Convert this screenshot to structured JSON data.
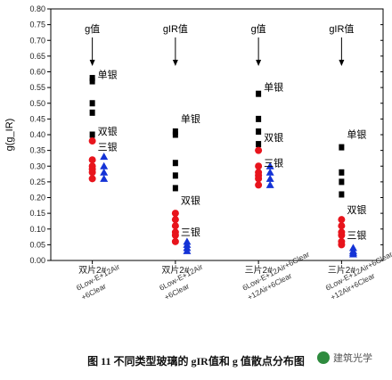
{
  "chart_data": {
    "type": "scatter",
    "ylabel": "g(g_IR)",
    "ylim": [
      0,
      0.8
    ],
    "ytick_labels": [
      "0.00",
      "0.05",
      "0.10",
      "0.15",
      "0.20",
      "0.25",
      "0.30",
      "0.35",
      "0.40",
      "0.45",
      "0.50",
      "0.55",
      "0.60",
      "0.65",
      "0.70",
      "0.75",
      "0.80"
    ],
    "categories": [
      {
        "label": "双片2#",
        "sub": [
          "6Low-E+12Air",
          "+6Clear"
        ],
        "top": "g值"
      },
      {
        "label": "双片2#",
        "sub": [
          "6Low-E+12Air",
          "+6Clear"
        ],
        "top": "gIR值"
      },
      {
        "label": "三片2#",
        "sub": [
          "6Low-E+12Air+6Clear",
          "+12Air+6Clear"
        ],
        "top": "g值"
      },
      {
        "label": "三片2#",
        "sub": [
          "6Low-E+12Air+6Clear",
          "+12Air+6Clear"
        ],
        "top": "gIR值"
      }
    ],
    "series": [
      {
        "name": "单银",
        "marker": "square",
        "color": "#000000",
        "points": [
          [
            [
              1,
              0.58
            ],
            [
              1,
              0.57
            ],
            [
              1,
              0.5
            ],
            [
              1,
              0.47
            ],
            [
              1,
              0.4
            ]
          ],
          [
            [
              2,
              0.41
            ],
            [
              2,
              0.4
            ],
            [
              2,
              0.31
            ],
            [
              2,
              0.27
            ],
            [
              2,
              0.23
            ]
          ],
          [
            [
              3,
              0.53
            ],
            [
              3,
              0.45
            ],
            [
              3,
              0.41
            ],
            [
              3,
              0.37
            ]
          ],
          [
            [
              4,
              0.36
            ],
            [
              4,
              0.28
            ],
            [
              4,
              0.25
            ],
            [
              4,
              0.21
            ]
          ]
        ]
      },
      {
        "name": "双银",
        "marker": "circle",
        "color": "#e8141c",
        "points": [
          [
            [
              1,
              0.38
            ],
            [
              1,
              0.32
            ],
            [
              1,
              0.3
            ],
            [
              1,
              0.29
            ],
            [
              1,
              0.28
            ],
            [
              1,
              0.26
            ]
          ],
          [
            [
              2,
              0.15
            ],
            [
              2,
              0.13
            ],
            [
              2,
              0.11
            ],
            [
              2,
              0.09
            ],
            [
              2,
              0.08
            ],
            [
              2,
              0.06
            ]
          ],
          [
            [
              3,
              0.35
            ],
            [
              3,
              0.3
            ],
            [
              3,
              0.28
            ],
            [
              3,
              0.27
            ],
            [
              3,
              0.26
            ],
            [
              3,
              0.24
            ]
          ],
          [
            [
              4,
              0.13
            ],
            [
              4,
              0.11
            ],
            [
              4,
              0.09
            ],
            [
              4,
              0.08
            ],
            [
              4,
              0.06
            ],
            [
              4,
              0.05
            ]
          ]
        ]
      },
      {
        "name": "三银",
        "marker": "triangle",
        "color": "#1433d6",
        "points": [
          [
            [
              1.14,
              0.33
            ],
            [
              1.14,
              0.3
            ],
            [
              1.14,
              0.28
            ],
            [
              1.14,
              0.26
            ]
          ],
          [
            [
              2.14,
              0.06
            ],
            [
              2.14,
              0.05
            ],
            [
              2.14,
              0.04
            ],
            [
              2.14,
              0.03
            ]
          ],
          [
            [
              3.14,
              0.3
            ],
            [
              3.14,
              0.28
            ],
            [
              3.14,
              0.26
            ],
            [
              3.14,
              0.24
            ]
          ],
          [
            [
              4.14,
              0.04
            ],
            [
              4.14,
              0.03
            ],
            [
              4.14,
              0.025
            ],
            [
              4.14,
              0.02
            ]
          ]
        ]
      }
    ],
    "annotations": [
      {
        "text": "单银",
        "x": 1,
        "y": 0.58
      },
      {
        "text": "双银",
        "x": 1,
        "y": 0.4
      },
      {
        "text": "三银",
        "x": 1,
        "y": 0.35
      },
      {
        "text": "单银",
        "x": 2,
        "y": 0.44
      },
      {
        "text": "双银",
        "x": 2,
        "y": 0.18
      },
      {
        "text": "三银",
        "x": 2,
        "y": 0.08
      },
      {
        "text": "单银",
        "x": 3,
        "y": 0.54
      },
      {
        "text": "双银",
        "x": 3,
        "y": 0.38
      },
      {
        "text": "三银",
        "x": 3,
        "y": 0.3
      },
      {
        "text": "单银",
        "x": 4,
        "y": 0.39
      },
      {
        "text": "双银",
        "x": 4,
        "y": 0.15
      },
      {
        "text": "三银",
        "x": 4,
        "y": 0.07
      }
    ]
  },
  "caption": "图 11 不同类型玻璃的 gIR值和 g 值散点分布图",
  "watermark": "建筑光学"
}
